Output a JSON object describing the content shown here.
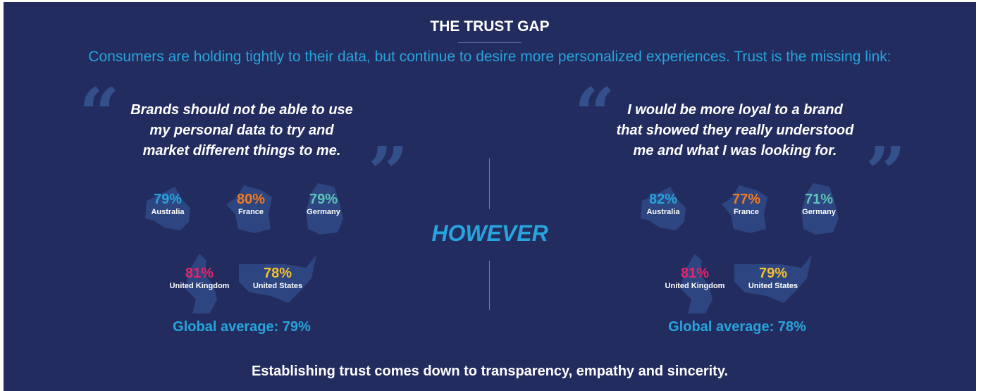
{
  "header": {
    "title": "THE TRUST GAP",
    "subtitle": "Consumers are holding tightly to their data, but continue to desire more personalized experiences. Trust is the missing link:"
  },
  "colors": {
    "background": "#232c5e",
    "accent_blue": "#27a3dd",
    "australia": "#27a3dd",
    "france": "#f47b20",
    "germany": "#5ec4b6",
    "united_kingdom": "#e8246c",
    "united_states": "#f7c12c"
  },
  "left": {
    "quote_lines": [
      "Brands should not be able to use",
      "my personal data to try and",
      "market different things to me."
    ],
    "countries": [
      {
        "name": "Australia",
        "value": "79%"
      },
      {
        "name": "France",
        "value": "80%"
      },
      {
        "name": "Germany",
        "value": "79%"
      },
      {
        "name": "United Kingdom",
        "value": "81%"
      },
      {
        "name": "United States",
        "value": "78%"
      }
    ],
    "global_average": "Global average: 79%"
  },
  "divider_label": "HOWEVER",
  "right": {
    "quote_lines": [
      "I would be more loyal to a brand",
      "that showed they really understood",
      "me and what I was looking for."
    ],
    "countries": [
      {
        "name": "Australia",
        "value": "82%"
      },
      {
        "name": "France",
        "value": "77%"
      },
      {
        "name": "Germany",
        "value": "71%"
      },
      {
        "name": "United Kingdom",
        "value": "81%"
      },
      {
        "name": "United States",
        "value": "79%"
      }
    ],
    "global_average": "Global average: 78%"
  },
  "footer": "Establishing trust comes down to transparency, empathy and sincerity.",
  "quote_marks": {
    "open": "“",
    "close": "”"
  }
}
